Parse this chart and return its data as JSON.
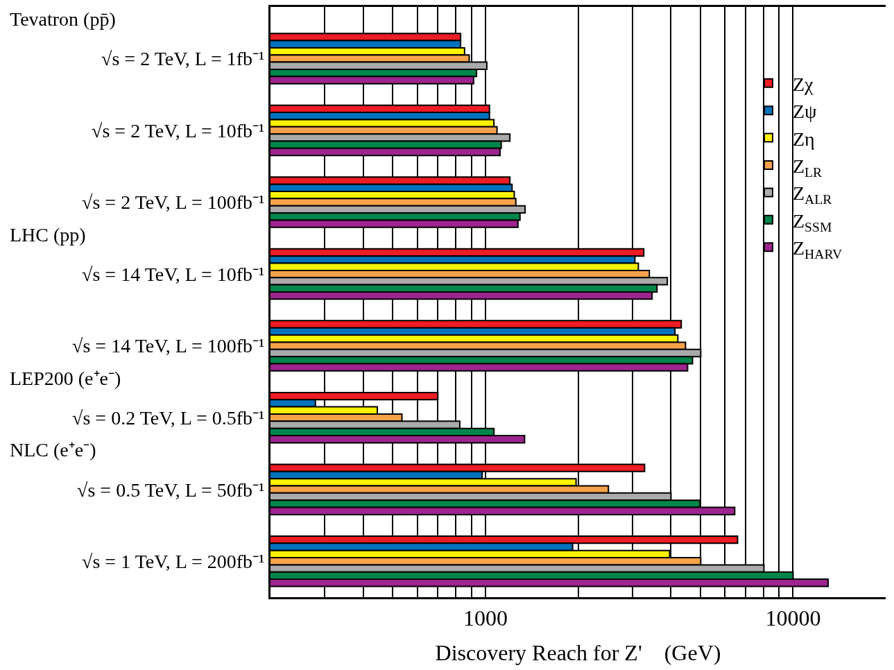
{
  "chart_data": {
    "type": "bar",
    "orientation": "horizontal",
    "xlabel": "Discovery Reach for Z'    (GeV)",
    "categories": [
      "√s = 2 TeV, L = 1fb⁻¹",
      "√s = 2 TeV, L = 10fb⁻¹",
      "√s = 2 TeV, L = 100fb⁻¹",
      "√s = 14 TeV, L = 10fb⁻¹",
      "√s = 14 TeV, L = 100fb⁻¹",
      "√s = 0.2 TeV, L = 0.5fb⁻¹",
      "√s = 0.5 TeV, L = 50fb⁻¹",
      "√s = 1 TeV, L = 200fb⁻¹"
    ],
    "series": [
      {
        "name": "Zχ",
        "color": "#ee1c25",
        "values": [
          830,
          1030,
          1200,
          3270,
          4330,
          700,
          3290,
          6600
        ]
      },
      {
        "name": "Zψ",
        "color": "#0072bc",
        "values": [
          830,
          1030,
          1220,
          3060,
          4130,
          280,
          975,
          1920
        ]
      },
      {
        "name": "Zη",
        "color": "#fff200",
        "values": [
          855,
          1065,
          1240,
          3140,
          4220,
          445,
          1970,
          3970
        ]
      },
      {
        "name": "Z$_{LR}$",
        "color": "#f7a24a",
        "values": [
          885,
          1090,
          1255,
          3410,
          4470,
          535,
          2510,
          5010
        ]
      },
      {
        "name": "Z$_{ALR}$",
        "color": "#aaaaaa",
        "values": [
          1010,
          1200,
          1345,
          3900,
          5010,
          825,
          4010,
          8040
        ]
      },
      {
        "name": "Z$_{SSM}$",
        "color": "#00854a",
        "values": [
          935,
          1125,
          1295,
          3610,
          4710,
          1065,
          4980,
          10000
        ]
      },
      {
        "name": "Z$_{HARV}$",
        "color": "#9e248f",
        "values": [
          915,
          1115,
          1275,
          3480,
          4540,
          1340,
          6460,
          13000
        ]
      }
    ],
    "log": "x",
    "xlim": [
      200,
      20000
    ],
    "xticks": [
      {
        "value": 300,
        "label": null
      },
      {
        "value": 400,
        "label": null
      },
      {
        "value": 500,
        "label": null
      },
      {
        "value": 600,
        "label": null
      },
      {
        "value": 700,
        "label": null
      },
      {
        "value": 800,
        "label": null
      },
      {
        "value": 900,
        "label": null
      },
      1000,
      {
        "value": 2000,
        "label": null
      },
      {
        "value": 3000,
        "label": null
      },
      {
        "value": 4000,
        "label": null
      },
      {
        "value": 5000,
        "label": null
      },
      {
        "value": 6000,
        "label": null
      },
      {
        "value": 7000,
        "label": null
      },
      {
        "value": 8000,
        "label": null
      },
      {
        "value": 9000,
        "label": null
      },
      10000
    ],
    "grid": "x",
    "legend": "top right",
    "annotations": [
      "Tevatron (pp̄)",
      "LHC (pp)",
      "LEP200 (e⁺e⁻)",
      "NLC (e⁺e⁻)"
    ]
  }
}
